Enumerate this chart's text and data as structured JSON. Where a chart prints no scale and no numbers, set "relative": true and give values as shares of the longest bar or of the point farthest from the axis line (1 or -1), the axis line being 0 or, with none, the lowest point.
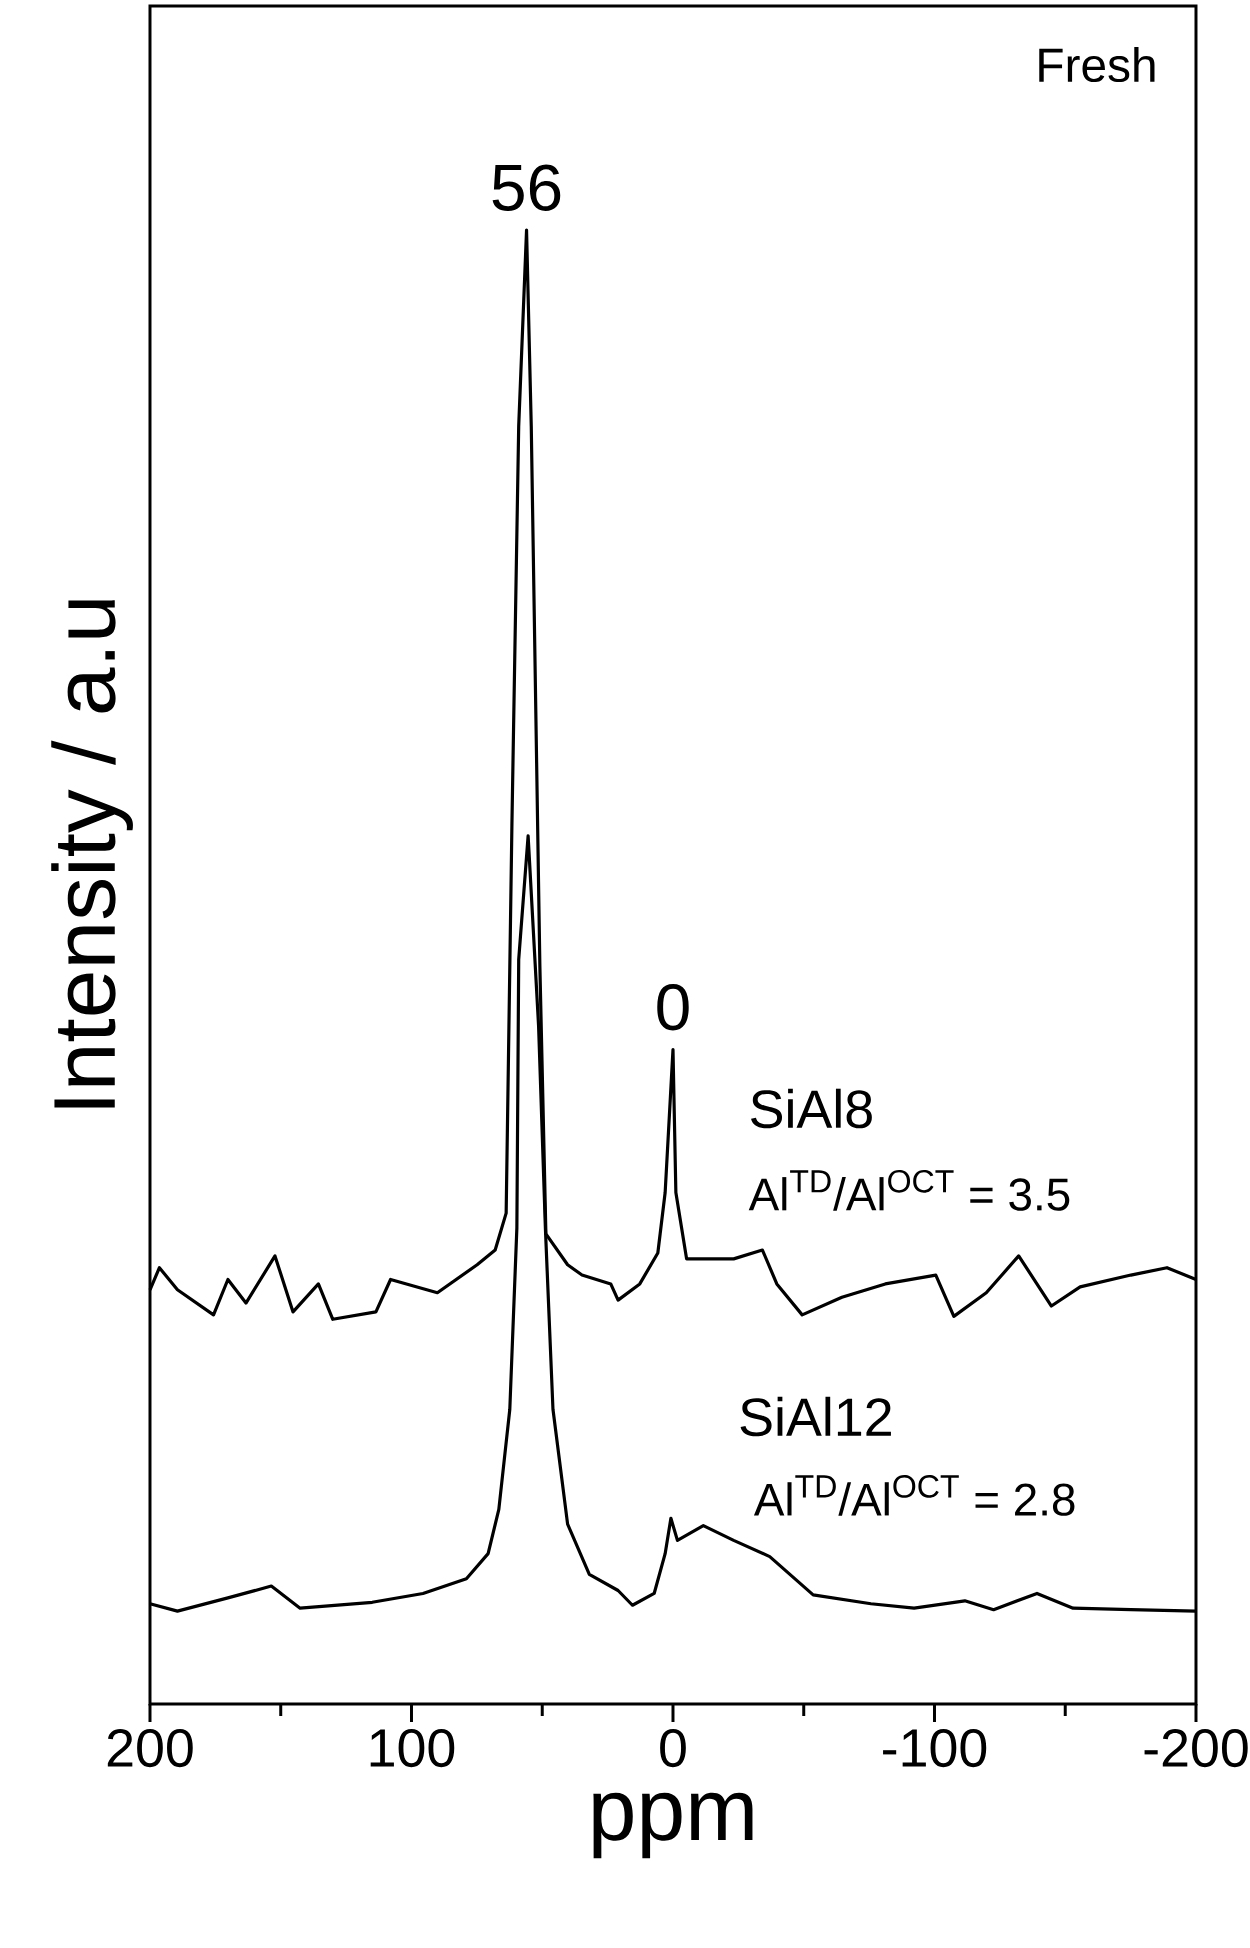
{
  "chart_data": {
    "type": "line",
    "relative": true,
    "xlabel": "ppm",
    "ylabel": "Intensity / a.u",
    "xlim": [
      200,
      -200
    ],
    "xticks": [
      200,
      100,
      0,
      -100,
      -200
    ],
    "tick_labels": "x",
    "grid": false,
    "marker": "none",
    "line_style": "solid",
    "annotations": [
      {
        "text": "56",
        "x": 56,
        "y": 1.0
      },
      {
        "text": "0",
        "x": 0,
        "y": 0.444
      },
      "Fresh",
      "Al$^{TD}$/Al$^{OCT}$ = 3.5",
      "Al$^{TD}$/Al$^{OCT}$ = 2.8"
    ],
    "series": [
      {
        "name": "SiAl8",
        "color": "#000000",
        "x": [
          200,
          196.4,
          189.5,
          175.7,
          170.2,
          163.3,
          152.2,
          145.3,
          135.6,
          130.1,
          113.6,
          108.0,
          90.1,
          74.9,
          68.0,
          63.8,
          61.6,
          59.0,
          56,
          54.2,
          50.9,
          48.6,
          40.3,
          34.8,
          23.8,
          21.0,
          12.7,
          5.8,
          3.0,
          0,
          -1.1,
          -5.2,
          -23.2,
          -34.2,
          -39.7,
          -49.4,
          -64.6,
          -81.2,
          -100.5,
          -107.4,
          -119.8,
          -132.2,
          -144.7,
          -155.7,
          -175.1,
          -188.9,
          -200
        ],
        "values": [
          0.281,
          0.296,
          0.281,
          0.264,
          0.288,
          0.272,
          0.304,
          0.266,
          0.285,
          0.261,
          0.266,
          0.288,
          0.279,
          0.298,
          0.308,
          0.333,
          0.596,
          0.867,
          1.0,
          0.867,
          0.5,
          0.319,
          0.298,
          0.291,
          0.285,
          0.274,
          0.285,
          0.306,
          0.347,
          0.444,
          0.347,
          0.302,
          0.302,
          0.308,
          0.285,
          0.264,
          0.276,
          0.285,
          0.291,
          0.263,
          0.279,
          0.304,
          0.27,
          0.283,
          0.291,
          0.296,
          0.288
        ]
      },
      {
        "name": "SiAl12",
        "color": "#000000",
        "x": [
          200,
          189.5,
          170.2,
          153.6,
          142.6,
          115.0,
          95.6,
          79.0,
          70.7,
          66.6,
          62.4,
          59.7,
          59.0,
          55.4,
          51.4,
          48.8,
          45.9,
          40.3,
          32.0,
          21.0,
          15.5,
          7.2,
          3.0,
          0.8,
          -1.7,
          -11.6,
          -23.2,
          -37.0,
          -53.6,
          -75.7,
          -92.2,
          -111.6,
          -122.6,
          -139.2,
          -153.0,
          -175.1,
          -200
        ],
        "values": [
          0.068,
          0.063,
          0.072,
          0.08,
          0.065,
          0.069,
          0.075,
          0.085,
          0.102,
          0.132,
          0.2,
          0.323,
          0.505,
          0.589,
          0.46,
          0.323,
          0.2,
          0.122,
          0.088,
          0.077,
          0.067,
          0.075,
          0.102,
          0.126,
          0.111,
          0.121,
          0.111,
          0.1,
          0.074,
          0.068,
          0.065,
          0.07,
          0.064,
          0.075,
          0.065,
          0.064,
          0.063
        ]
      }
    ]
  }
}
